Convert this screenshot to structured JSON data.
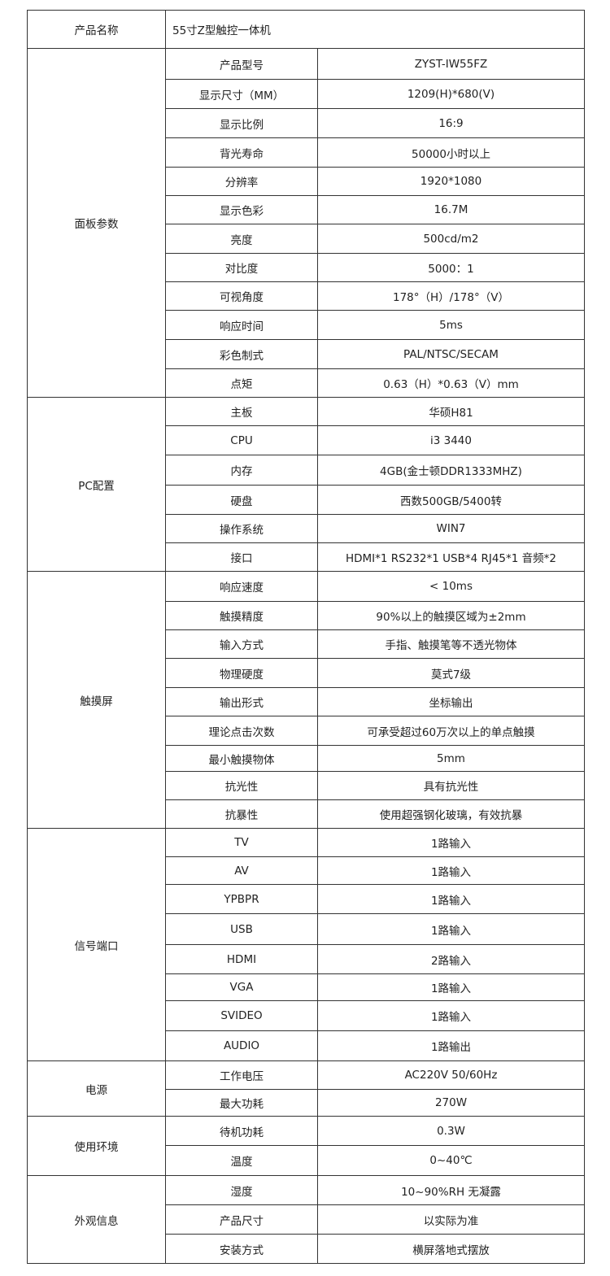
{
  "header": {
    "label": "产品名称",
    "value": "55寸Z型触控一体机"
  },
  "groups": [
    {
      "name": "面板参数",
      "rows": [
        [
          "产品型号",
          "ZYST-IW55FZ"
        ],
        [
          "显示尺寸（MM）",
          "1209(H)*680(V)"
        ],
        [
          "显示比例",
          "16:9"
        ],
        [
          "背光寿命",
          "50000小时以上"
        ],
        [
          "分辨率",
          "1920*1080"
        ],
        [
          "显示色彩",
          "16.7M"
        ],
        [
          "亮度",
          "500cd/m2"
        ],
        [
          "对比度",
          "5000：1"
        ],
        [
          "可视角度",
          "178°（H）/178°（V）"
        ],
        [
          "响应时间",
          "5ms"
        ],
        [
          "彩色制式",
          "PAL/NTSC/SECAM"
        ],
        [
          "点矩",
          "0.63（H）*0.63（V）mm"
        ]
      ]
    },
    {
      "name": "PC配置",
      "rows": [
        [
          "主板",
          "华硕H81"
        ],
        [
          "CPU",
          "i3 3440"
        ],
        [
          "内存",
          "4GB(金士顿DDR1333MHZ)"
        ],
        [
          "硬盘",
          "西数500GB/5400转"
        ],
        [
          "操作系统",
          "WIN7"
        ],
        [
          "接口",
          "HDMI*1  RS232*1 USB*4 RJ45*1 音频*2"
        ]
      ]
    },
    {
      "name": "触摸屏",
      "rows": [
        [
          "响应速度",
          "< 10ms"
        ],
        [
          "触摸精度",
          "90%以上的触摸区域为±2mm"
        ],
        [
          "输入方式",
          "手指、触摸笔等不透光物体"
        ],
        [
          "物理硬度",
          "莫式7级"
        ],
        [
          "输出形式",
          "坐标输出"
        ],
        [
          "理论点击次数",
          "可承受超过60万次以上的单点触摸"
        ],
        [
          "最小触摸物体",
          "5mm"
        ],
        [
          "抗光性",
          "具有抗光性"
        ],
        [
          "抗暴性",
          "使用超强钢化玻璃，有效抗暴"
        ]
      ]
    },
    {
      "name": "信号端口",
      "rows": [
        [
          "TV",
          "1路输入"
        ],
        [
          "AV",
          "1路输入"
        ],
        [
          "YPBPR",
          "1路输入"
        ],
        [
          "USB",
          "1路输入"
        ],
        [
          "HDMI",
          "2路输入"
        ],
        [
          "VGA",
          "1路输入"
        ],
        [
          "SVIDEO",
          "1路输入"
        ],
        [
          "AUDIO",
          "1路输出"
        ]
      ]
    },
    {
      "name": "电源",
      "rows": [
        [
          "工作电压",
          "AC220V 50/60Hz"
        ],
        [
          "最大功耗",
          "270W"
        ]
      ]
    },
    {
      "name": "使用环境",
      "rows": [
        [
          "待机功耗",
          "0.3W"
        ],
        [
          "温度",
          "0~40℃"
        ]
      ]
    },
    {
      "name": "外观信息",
      "rows": [
        [
          "湿度",
          "10~90%RH 无凝露"
        ],
        [
          "产品尺寸",
          "以实际为准"
        ],
        [
          "安装方式",
          "横屏落地式摆放"
        ]
      ]
    }
  ]
}
